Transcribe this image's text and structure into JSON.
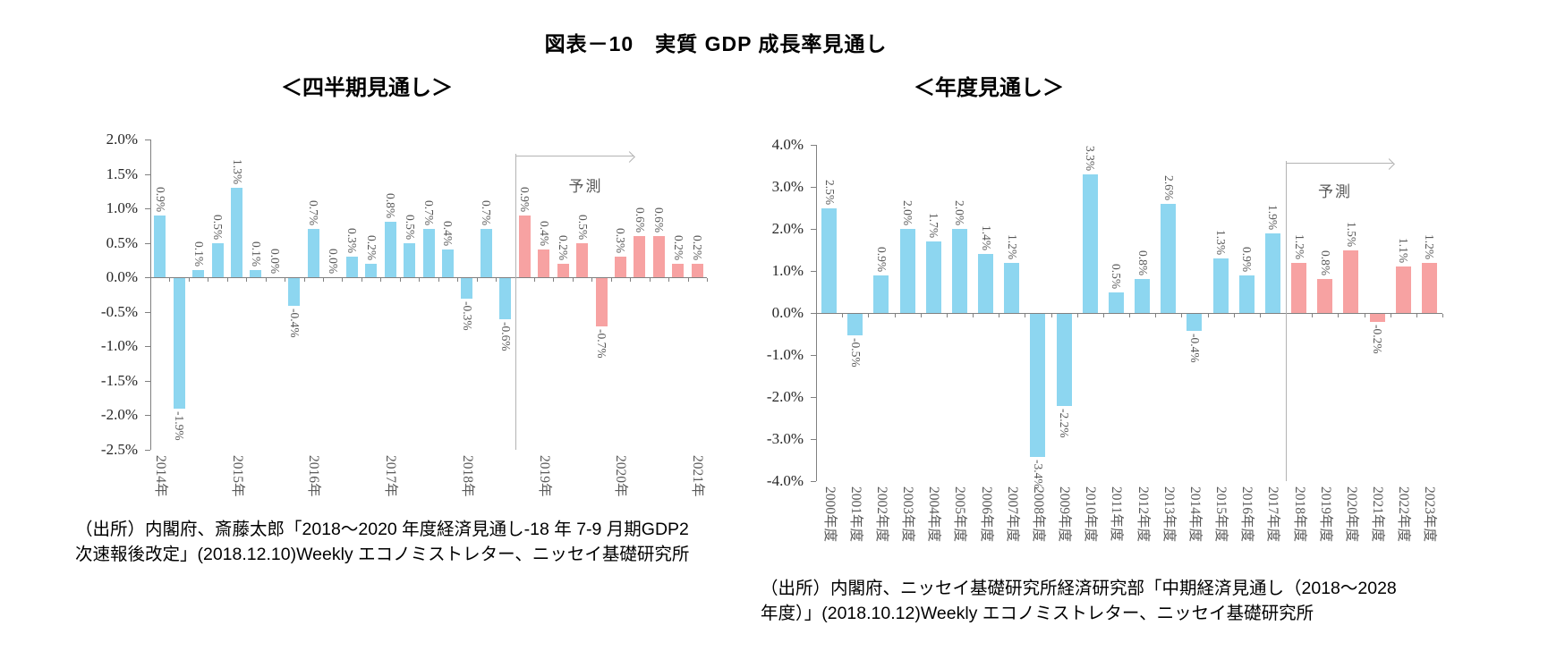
{
  "figure_title": "図表－10　実質 GDP 成長率見通し",
  "chart_data": [
    {
      "type": "bar",
      "subtitle": "＜四半期見通し＞",
      "forecast_label": "予測",
      "unit": "%",
      "values": [
        0.9,
        -1.9,
        0.1,
        0.5,
        1.3,
        0.1,
        0.0,
        -0.4,
        0.7,
        0.0,
        0.3,
        0.2,
        0.8,
        0.5,
        0.7,
        0.4,
        -0.3,
        0.7,
        -0.6,
        0.9,
        0.4,
        0.2,
        0.5,
        -0.7,
        0.3,
        0.6,
        0.6,
        0.2,
        0.2
      ],
      "forecast_start_index": 19,
      "x_axis": {
        "labels": [
          "2014年",
          "2015年",
          "2016年",
          "2017年",
          "2018年",
          "2019年",
          "2020年",
          "2021年"
        ],
        "label_indices": [
          0,
          4,
          8,
          12,
          16,
          20,
          24,
          28
        ],
        "bar_count": 29
      },
      "y_axis": {
        "tick_labels": [
          "2.0%",
          "1.5%",
          "1.0%",
          "0.5%",
          "0.0%",
          "-0.5%",
          "-1.0%",
          "-1.5%",
          "-2.0%",
          "-2.5%"
        ],
        "max": 2.0,
        "min": -2.5,
        "step": 0.5
      },
      "colors": {
        "actual": "#8DD6F0",
        "forecast": "#F7A2A2"
      },
      "legend_position": "none",
      "grid": false,
      "source_lines": [
        "（出所）内閣府、斎藤太郎「2018～2020 年度経済見通し-18 年 7-9 月期GDP2",
        "次速報後改定」(2018.12.10)Weekly エコノミストレター、ニッセイ基礎研究所"
      ]
    },
    {
      "type": "bar",
      "subtitle": "＜年度見通し＞",
      "forecast_label": "予測",
      "unit": "%",
      "values": [
        2.5,
        -0.5,
        0.9,
        2.0,
        1.7,
        2.0,
        1.4,
        1.2,
        -3.4,
        -2.2,
        3.3,
        0.5,
        0.8,
        2.6,
        -0.4,
        1.3,
        0.9,
        1.9,
        1.2,
        0.8,
        1.5,
        -0.2,
        1.1,
        1.2
      ],
      "forecast_start_index": 18,
      "x_axis": {
        "labels": [
          "2000年度",
          "2001年度",
          "2002年度",
          "2003年度",
          "2004年度",
          "2005年度",
          "2006年度",
          "2007年度",
          "2008年度",
          "2009年度",
          "2010年度",
          "2011年度",
          "2012年度",
          "2013年度",
          "2014年度",
          "2015年度",
          "2016年度",
          "2017年度",
          "2018年度",
          "2019年度",
          "2020年度",
          "2021年度",
          "2022年度",
          "2023年度"
        ],
        "label_indices": null,
        "bar_count": 24
      },
      "y_axis": {
        "tick_labels": [
          "4.0%",
          "3.0%",
          "2.0%",
          "1.0%",
          "0.0%",
          "-1.0%",
          "-2.0%",
          "-3.0%",
          "-4.0%"
        ],
        "max": 4.0,
        "min": -4.0,
        "step": 1.0
      },
      "colors": {
        "actual": "#8DD6F0",
        "forecast": "#F7A2A2"
      },
      "legend_position": "none",
      "grid": false,
      "source_lines": [
        "（出所）内閣府、ニッセイ基礎研究所経済研究部「中期経済見通し（2018～2028",
        "年度）」(2018.10.12)Weekly エコノミストレター、ニッセイ基礎研究所"
      ]
    }
  ]
}
